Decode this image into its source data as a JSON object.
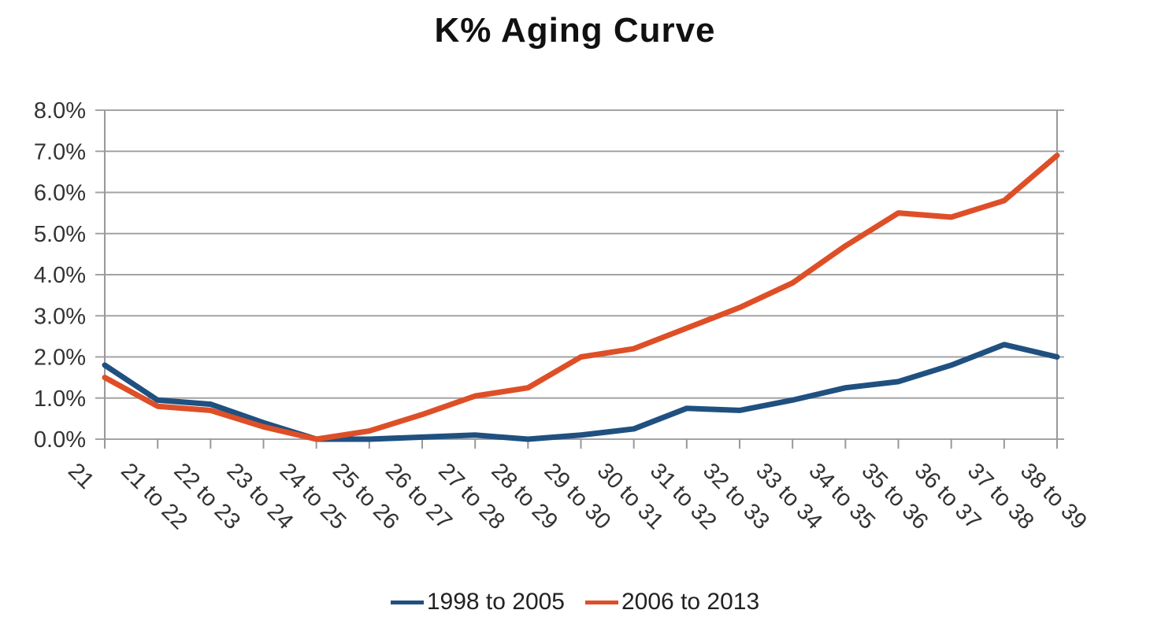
{
  "chart_data": {
    "type": "line",
    "title": "K% Aging Curve",
    "categories": [
      "21",
      "21 to 22",
      "22 to 23",
      "23 to 24",
      "24 to 25",
      "25 to 26",
      "26 to 27",
      "27 to 28",
      "28 to 29",
      "29 to 30",
      "30 to 31",
      "31 to 32",
      "32 to 33",
      "33 to 34",
      "34 to 35",
      "35 to 36",
      "36 to 37",
      "37 to 38",
      "38 to 39"
    ],
    "series": [
      {
        "name": "1998 to 2005",
        "color": "#1F5080",
        "values": [
          1.8,
          0.95,
          0.85,
          0.4,
          0.0,
          0.0,
          0.05,
          0.1,
          0.0,
          0.1,
          0.25,
          0.75,
          0.7,
          0.95,
          1.25,
          1.4,
          1.8,
          2.3,
          2.0
        ]
      },
      {
        "name": "2006 to 2013",
        "color": "#DE4F27",
        "values": [
          1.5,
          0.8,
          0.7,
          0.3,
          0.0,
          0.2,
          0.6,
          1.05,
          1.25,
          2.0,
          2.2,
          2.7,
          3.2,
          3.8,
          4.7,
          5.5,
          5.4,
          5.8,
          6.9
        ]
      }
    ],
    "xlabel": "",
    "ylabel": "",
    "ylim": [
      0,
      8
    ],
    "ytick_labels": [
      "0.0%",
      "1.0%",
      "2.0%",
      "3.0%",
      "4.0%",
      "5.0%",
      "6.0%",
      "7.0%",
      "8.0%"
    ],
    "grid": "horizontal",
    "legend_position": "bottom",
    "colors": {
      "background": "#FFFFFF",
      "grid": "#A3A3A3",
      "axis": "#999999",
      "text": "#333333",
      "title": "#111111"
    }
  }
}
